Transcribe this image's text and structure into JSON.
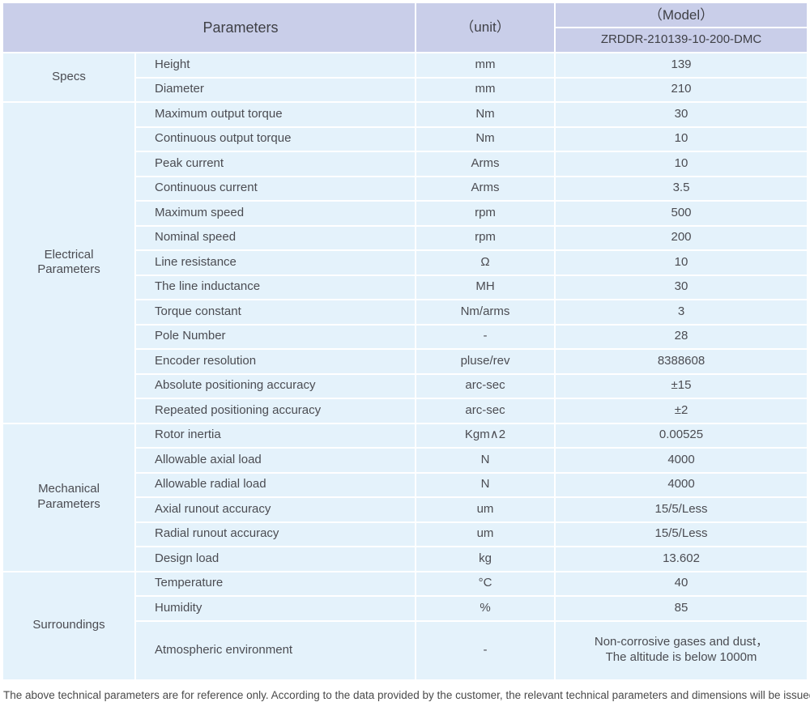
{
  "table": {
    "header": {
      "parameters_label": "Parameters",
      "unit_label": "（unit）",
      "model_label": "（Model）",
      "model_value": "ZRDDR-210139-10-200-DMC"
    },
    "sections": [
      {
        "name": "Specs",
        "rows": [
          {
            "param": "Height",
            "unit": "mm",
            "value": "139"
          },
          {
            "param": "Diameter",
            "unit": "mm",
            "value": "210"
          }
        ]
      },
      {
        "name": "Electrical\nParameters",
        "rows": [
          {
            "param": "Maximum output torque",
            "unit": "Nm",
            "value": "30"
          },
          {
            "param": "Continuous output torque",
            "unit": "Nm",
            "value": "10"
          },
          {
            "param": "Peak current",
            "unit": "Arms",
            "value": "10"
          },
          {
            "param": "Continuous current",
            "unit": "Arms",
            "value": "3.5"
          },
          {
            "param": "Maximum speed",
            "unit": "rpm",
            "value": "500"
          },
          {
            "param": "Nominal speed",
            "unit": "rpm",
            "value": "200"
          },
          {
            "param": "Line resistance",
            "unit": "Ω",
            "value": "10"
          },
          {
            "param": "The line inductance",
            "unit": "MH",
            "value": "30"
          },
          {
            "param": "Torque constant",
            "unit": "Nm/arms",
            "value": "3"
          },
          {
            "param": "Pole Number",
            "unit": "-",
            "value": "28"
          },
          {
            "param": "Encoder resolution",
            "unit": "pluse/rev",
            "value": "8388608"
          },
          {
            "param": "Absolute positioning accuracy",
            "unit": "arc-sec",
            "value": "±15"
          },
          {
            "param": "Repeated positioning accuracy",
            "unit": "arc-sec",
            "value": "±2"
          }
        ]
      },
      {
        "name": "Mechanical\nParameters",
        "rows": [
          {
            "param": "Rotor inertia",
            "unit": "Kgm∧2",
            "value": "0.00525"
          },
          {
            "param": "Allowable axial load",
            "unit": "N",
            "value": "4000"
          },
          {
            "param": "Allowable radial load",
            "unit": "N",
            "value": "4000"
          },
          {
            "param": "Axial runout accuracy",
            "unit": "um",
            "value": "15/5/Less"
          },
          {
            "param": "Radial runout accuracy",
            "unit": "um",
            "value": "15/5/Less"
          },
          {
            "param": "Design load",
            "unit": "kg",
            "value": "13.602"
          }
        ]
      },
      {
        "name": "Surroundings",
        "rows": [
          {
            "param": "Temperature",
            "unit": "°C",
            "value": "40"
          },
          {
            "param": "Humidity",
            "unit": "%",
            "value": "85"
          },
          {
            "param": "Atmospheric environment",
            "unit": "-",
            "value": "Non-corrosive gases and dust，\nThe altitude is below 1000m",
            "tall": true
          }
        ]
      }
    ]
  },
  "page": {
    "footer_note": "The above technical parameters are for reference only. According to the data provided by the customer, the relevant technical parameters and dimensions will be issued."
  },
  "colors": {
    "header_bg": "#c9cee9",
    "row_bg": "#e4f2fb",
    "header_text": "#3f4046",
    "body_text": "#4b4c52"
  }
}
